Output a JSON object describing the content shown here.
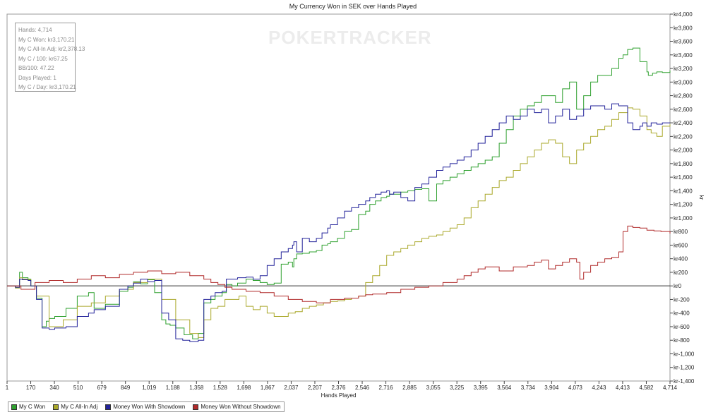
{
  "watermark": "POKERTRACKER",
  "stats": [
    "Hands: 4,714",
    "My C Won: kr3,170.21",
    "My C All-In Adj: kr2,378.13",
    "My C / 100: kr67.25",
    "BB/100: 47.22",
    "Days Played: 1",
    "My C / Day: kr3,170.21"
  ],
  "chart_data": {
    "type": "line",
    "title": "My Currency Won in SEK over Hands Played",
    "xlabel": "Hands Played",
    "ylabel": "kr",
    "xlim": [
      1,
      4714
    ],
    "ylim": [
      -1400,
      4000
    ],
    "x_ticks": [
      "1",
      "170",
      "340",
      "510",
      "679",
      "849",
      "1,019",
      "1,188",
      "1,358",
      "1,528",
      "1,698",
      "1,867",
      "2,037",
      "2,207",
      "2,376",
      "2,546",
      "2,716",
      "2,885",
      "3,055",
      "3,225",
      "3,395",
      "3,564",
      "3,734",
      "3,904",
      "4,073",
      "4,243",
      "4,413",
      "4,582",
      "4,714"
    ],
    "y_ticks": [
      "kr4,000",
      "kr3,800",
      "kr3,600",
      "kr3,400",
      "kr3,200",
      "kr3,000",
      "kr2,800",
      "kr2,600",
      "kr2,400",
      "kr2,200",
      "kr2,000",
      "kr1,800",
      "kr1,600",
      "kr1,400",
      "kr1,200",
      "kr1,000",
      "kr800",
      "kr600",
      "kr400",
      "kr200",
      "kr0",
      "kr-200",
      "kr-400",
      "kr-600",
      "kr-800",
      "kr-1,000",
      "kr-1,200",
      "kr-1,400"
    ],
    "y_tick_values": [
      4000,
      3800,
      3600,
      3400,
      3200,
      3000,
      2800,
      2600,
      2400,
      2200,
      2000,
      1800,
      1600,
      1400,
      1200,
      1000,
      800,
      600,
      400,
      200,
      0,
      -200,
      -400,
      -600,
      -800,
      -1000,
      -1200,
      -1400
    ],
    "legend_position": "bottom-left",
    "series": [
      {
        "name": "My C Won",
        "color": "#2ea02e",
        "x": [
          1,
          60,
          90,
          110,
          150,
          170,
          210,
          250,
          280,
          300,
          340,
          420,
          500,
          580,
          620,
          700,
          800,
          860,
          900,
          950,
          1000,
          1050,
          1100,
          1130,
          1160,
          1200,
          1260,
          1320,
          1360,
          1400,
          1450,
          1480,
          1530,
          1560,
          1600,
          1640,
          1700,
          1750,
          1800,
          1850,
          1900,
          1950,
          2000,
          2030,
          2040,
          2060,
          2100,
          2150,
          2200,
          2240,
          2280,
          2300,
          2350,
          2400,
          2450,
          2500,
          2550,
          2580,
          2620,
          2660,
          2700,
          2720,
          2750,
          2800,
          2850,
          2900,
          2950,
          3000,
          3055,
          3100,
          3150,
          3200,
          3250,
          3300,
          3350,
          3400,
          3450,
          3500,
          3550,
          3600,
          3650,
          3700,
          3750,
          3800,
          3850,
          3900,
          3950,
          4000,
          4050,
          4100,
          4150,
          4200,
          4250,
          4300,
          4350,
          4380,
          4413,
          4450,
          4500,
          4550,
          4560,
          4590,
          4620,
          4660,
          4714
        ],
        "values": [
          0,
          -30,
          200,
          120,
          100,
          0,
          -180,
          -600,
          -520,
          -480,
          -450,
          -330,
          -150,
          -100,
          -330,
          -270,
          -80,
          -20,
          60,
          30,
          90,
          -100,
          -500,
          -560,
          -580,
          -620,
          -720,
          -780,
          -700,
          -250,
          -200,
          -150,
          -100,
          20,
          0,
          40,
          100,
          80,
          50,
          20,
          40,
          320,
          350,
          280,
          400,
          470,
          480,
          500,
          520,
          600,
          620,
          650,
          700,
          800,
          830,
          1050,
          1100,
          1200,
          1250,
          1300,
          1320,
          1350,
          1350,
          1380,
          1400,
          1420,
          1430,
          1250,
          1500,
          1550,
          1600,
          1650,
          1700,
          1750,
          1800,
          1850,
          1900,
          2100,
          2300,
          2500,
          2600,
          2650,
          2700,
          2800,
          2800,
          2700,
          2900,
          3000,
          2600,
          2800,
          3000,
          3100,
          3100,
          3200,
          3350,
          3400,
          3480,
          3500,
          3300,
          3150,
          3100,
          3130,
          3150,
          3140,
          3170.21
        ]
      },
      {
        "name": "My C All-In Adj",
        "color": "#aaa82a",
        "x": [
          1,
          60,
          90,
          110,
          150,
          170,
          210,
          300,
          400,
          500,
          600,
          700,
          800,
          900,
          1000,
          1100,
          1200,
          1300,
          1360,
          1400,
          1450,
          1500,
          1550,
          1600,
          1650,
          1700,
          1750,
          1800,
          1850,
          1900,
          1950,
          2000,
          2050,
          2100,
          2150,
          2200,
          2250,
          2300,
          2350,
          2400,
          2450,
          2500,
          2550,
          2600,
          2650,
          2700,
          2750,
          2800,
          2850,
          2900,
          2950,
          3000,
          3055,
          3100,
          3150,
          3200,
          3250,
          3300,
          3350,
          3400,
          3450,
          3500,
          3550,
          3600,
          3650,
          3700,
          3750,
          3800,
          3850,
          3900,
          3950,
          4000,
          4050,
          4100,
          4150,
          4200,
          4250,
          4300,
          4350,
          4413,
          4450,
          4500,
          4550,
          4580,
          4620,
          4660,
          4714
        ],
        "values": [
          0,
          -30,
          120,
          100,
          90,
          0,
          -150,
          -600,
          -500,
          -300,
          -250,
          -150,
          -50,
          50,
          100,
          -200,
          -500,
          -700,
          -760,
          -500,
          -330,
          -300,
          -200,
          -200,
          -150,
          -300,
          -350,
          -300,
          -400,
          -450,
          -450,
          -400,
          -380,
          -330,
          -300,
          -280,
          -250,
          -230,
          -220,
          -200,
          -180,
          -150,
          50,
          150,
          300,
          450,
          500,
          550,
          600,
          650,
          700,
          730,
          750,
          800,
          850,
          900,
          1000,
          1150,
          1250,
          1350,
          1450,
          1550,
          1600,
          1700,
          1800,
          1900,
          2000,
          2100,
          2150,
          2100,
          1900,
          1800,
          2000,
          2100,
          2200,
          2300,
          2350,
          2450,
          2550,
          2620,
          2600,
          2500,
          2300,
          2250,
          2200,
          2350,
          2378.13
        ]
      },
      {
        "name": "Money Won With Showdown",
        "color": "#22229a",
        "x": [
          1,
          60,
          90,
          110,
          150,
          170,
          210,
          250,
          300,
          340,
          420,
          500,
          580,
          620,
          700,
          800,
          860,
          900,
          950,
          1000,
          1050,
          1100,
          1150,
          1200,
          1250,
          1300,
          1360,
          1400,
          1450,
          1480,
          1530,
          1560,
          1600,
          1640,
          1700,
          1750,
          1800,
          1850,
          1900,
          1950,
          2000,
          2030,
          2040,
          2060,
          2100,
          2150,
          2200,
          2240,
          2280,
          2300,
          2350,
          2400,
          2450,
          2500,
          2550,
          2580,
          2620,
          2660,
          2700,
          2720,
          2750,
          2800,
          2850,
          2900,
          2950,
          3000,
          3055,
          3100,
          3150,
          3200,
          3250,
          3300,
          3350,
          3400,
          3450,
          3500,
          3550,
          3600,
          3650,
          3700,
          3750,
          3800,
          3850,
          3900,
          3950,
          4000,
          4050,
          4100,
          4150,
          4200,
          4250,
          4300,
          4350,
          4413,
          4450,
          4500,
          4520,
          4550,
          4580,
          4620,
          4660,
          4714
        ],
        "values": [
          0,
          -20,
          100,
          90,
          80,
          0,
          -200,
          -620,
          -640,
          -620,
          -600,
          -450,
          -400,
          -350,
          -300,
          -50,
          0,
          40,
          100,
          60,
          80,
          -400,
          -500,
          -780,
          -800,
          -820,
          -800,
          -200,
          -150,
          -100,
          -80,
          100,
          100,
          120,
          130,
          100,
          150,
          300,
          400,
          500,
          550,
          600,
          650,
          500,
          700,
          650,
          700,
          780,
          850,
          900,
          1000,
          1100,
          1150,
          1200,
          1250,
          1300,
          1350,
          1380,
          1400,
          1350,
          1380,
          1300,
          1250,
          1450,
          1500,
          1600,
          1700,
          1750,
          1800,
          1850,
          1900,
          2000,
          2100,
          2200,
          2300,
          2400,
          2500,
          2450,
          2500,
          2600,
          2550,
          2600,
          2400,
          2500,
          2600,
          2450,
          2500,
          2600,
          2650,
          2650,
          2600,
          2680,
          2650,
          2400,
          2300,
          2350,
          2400,
          2350,
          2400,
          2380,
          2400,
          2400
        ]
      },
      {
        "name": "Money Won Without Showdown",
        "color": "#b02a2a",
        "x": [
          1,
          100,
          200,
          300,
          400,
          500,
          600,
          700,
          800,
          900,
          1000,
          1100,
          1200,
          1300,
          1400,
          1450,
          1500,
          1550,
          1600,
          1700,
          1800,
          1900,
          2000,
          2100,
          2200,
          2300,
          2400,
          2500,
          2550,
          2600,
          2700,
          2800,
          2900,
          3000,
          3100,
          3200,
          3250,
          3300,
          3350,
          3400,
          3500,
          3600,
          3700,
          3750,
          3800,
          3850,
          3900,
          3950,
          4000,
          4050,
          4073,
          4100,
          4150,
          4200,
          4250,
          4300,
          4350,
          4380,
          4413,
          4450,
          4500,
          4550,
          4600,
          4650,
          4714
        ],
        "values": [
          0,
          -50,
          50,
          80,
          50,
          100,
          150,
          120,
          170,
          200,
          220,
          180,
          200,
          150,
          100,
          50,
          20,
          -20,
          -50,
          -80,
          -100,
          -150,
          -200,
          -230,
          -250,
          -200,
          -180,
          -150,
          -130,
          -120,
          -100,
          -50,
          -20,
          0,
          50,
          100,
          150,
          200,
          250,
          280,
          220,
          280,
          300,
          350,
          380,
          250,
          300,
          350,
          400,
          350,
          100,
          200,
          300,
          350,
          400,
          420,
          500,
          800,
          880,
          860,
          850,
          820,
          810,
          800,
          770
        ]
      }
    ]
  },
  "legend_items": [
    "My C Won",
    "My C All-In Adj",
    "Money Won With Showdown",
    "Money Won Without Showdown"
  ]
}
